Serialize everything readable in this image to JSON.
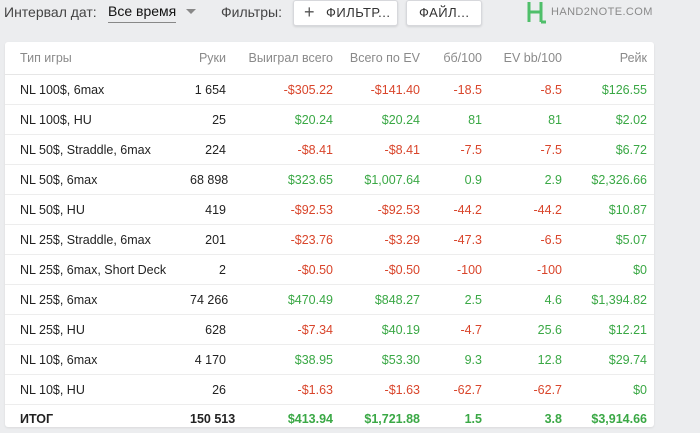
{
  "toolbar": {
    "period_label": "Интервал дат:",
    "period_value": "Все время",
    "filters_label": "Фильтры:",
    "filters_button": "ФИЛЬТР...",
    "files_button": "ФАЙЛ...",
    "logo_text": "HAND2NOTE.COM"
  },
  "table": {
    "headers": [
      "Тип игры",
      "Руки",
      "Выиграл всего",
      "Всего по EV",
      "бб/100",
      "EV bb/100",
      "Рейк"
    ],
    "rows": [
      {
        "game": "NL 100$, 6max",
        "hands": "1 654",
        "won": "-$305.22",
        "ev": "-$141.40",
        "bb100": "-18.5",
        "evbb100": "-8.5",
        "rake": "$126.55"
      },
      {
        "game": "NL 100$, HU",
        "hands": "25",
        "won": "$20.24",
        "ev": "$20.24",
        "bb100": "81",
        "evbb100": "81",
        "rake": "$2.02"
      },
      {
        "game": "NL 50$, Straddle, 6max",
        "hands": "224",
        "won": "-$8.41",
        "ev": "-$8.41",
        "bb100": "-7.5",
        "evbb100": "-7.5",
        "rake": "$6.72"
      },
      {
        "game": "NL 50$, 6max",
        "hands": "68 898",
        "won": "$323.65",
        "ev": "$1,007.64",
        "bb100": "0.9",
        "evbb100": "2.9",
        "rake": "$2,326.66"
      },
      {
        "game": "NL 50$, HU",
        "hands": "419",
        "won": "-$92.53",
        "ev": "-$92.53",
        "bb100": "-44.2",
        "evbb100": "-44.2",
        "rake": "$10.87"
      },
      {
        "game": "NL 25$, Straddle, 6max",
        "hands": "201",
        "won": "-$23.76",
        "ev": "-$3.29",
        "bb100": "-47.3",
        "evbb100": "-6.5",
        "rake": "$5.07"
      },
      {
        "game": "NL 25$, 6max, Short Deck",
        "hands": "2",
        "won": "-$0.50",
        "ev": "-$0.50",
        "bb100": "-100",
        "evbb100": "-100",
        "rake": "$0"
      },
      {
        "game": "NL 25$, 6max",
        "hands": "74 266",
        "won": "$470.49",
        "ev": "$848.27",
        "bb100": "2.5",
        "evbb100": "4.6",
        "rake": "$1,394.82"
      },
      {
        "game": "NL 25$, HU",
        "hands": "628",
        "won": "-$7.34",
        "ev": "$40.19",
        "bb100": "-4.7",
        "evbb100": "25.6",
        "rake": "$12.21"
      },
      {
        "game": "NL 10$, 6max",
        "hands": "4 170",
        "won": "$38.95",
        "ev": "$53.30",
        "bb100": "9.3",
        "evbb100": "12.8",
        "rake": "$29.74"
      },
      {
        "game": "NL 10$, HU",
        "hands": "26",
        "won": "-$1.63",
        "ev": "-$1.63",
        "bb100": "-62.7",
        "evbb100": "-62.7",
        "rake": "$0"
      }
    ],
    "total": {
      "game": "ИТОГ",
      "hands": "150 513",
      "won": "$413.94",
      "ev": "$1,721.88",
      "bb100": "1.5",
      "evbb100": "3.8",
      "rake": "$3,914.66"
    }
  },
  "colors": {
    "positive": "#3aa845",
    "negative": "#d9452b",
    "logo_green": "#4fbf6a"
  },
  "icons": {
    "plus": "plus-icon",
    "dropdown": "chevron-down-icon",
    "logo": "hand2note-logo-icon"
  }
}
